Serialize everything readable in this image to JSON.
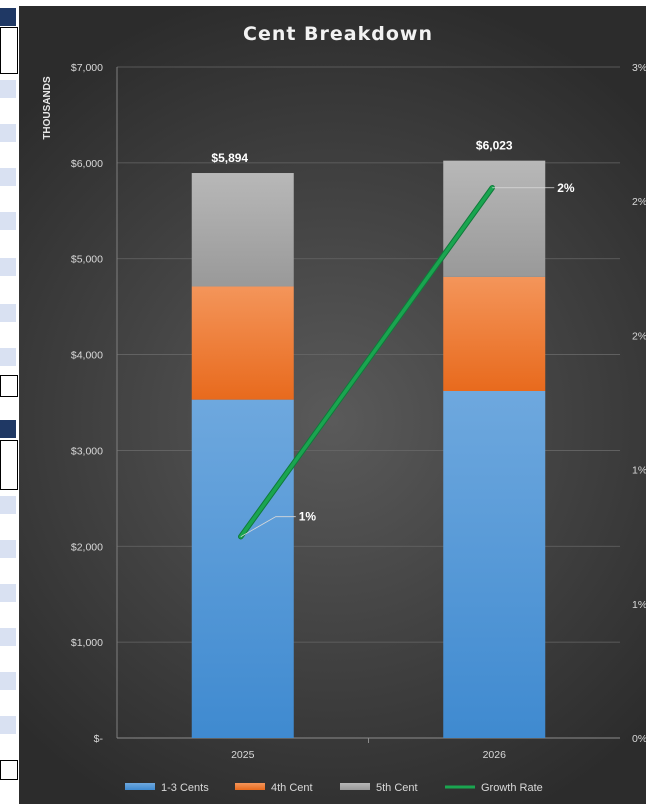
{
  "chart_data": {
    "type": "bar",
    "stacked": true,
    "title": "Cent Breakdown",
    "ylabel": "THOUSANDS",
    "xlabel": "",
    "categories": [
      "2025",
      "2026"
    ],
    "ylim": [
      0,
      7000
    ],
    "y_ticks": [
      {
        "value": 0,
        "label": "$-"
      },
      {
        "value": 1000,
        "label": "$1,000"
      },
      {
        "value": 2000,
        "label": "$2,000"
      },
      {
        "value": 3000,
        "label": "$3,000"
      },
      {
        "value": 4000,
        "label": "$4,000"
      },
      {
        "value": 5000,
        "label": "$5,000"
      },
      {
        "value": 6000,
        "label": "$6,000"
      },
      {
        "value": 7000,
        "label": "$7,000"
      }
    ],
    "y2lim": [
      0,
      0.025
    ],
    "y2_ticks": [
      {
        "value": 0,
        "label": "0%"
      },
      {
        "value": 0.005,
        "label": "1%"
      },
      {
        "value": 0.01,
        "label": "1%"
      },
      {
        "value": 0.015,
        "label": "2%"
      },
      {
        "value": 0.02,
        "label": "2%"
      },
      {
        "value": 0.025,
        "label": "3%"
      }
    ],
    "series": [
      {
        "name": "1-3 Cents",
        "values": [
          3530,
          3620
        ],
        "color": "#5b9bd5"
      },
      {
        "name": "4th Cent",
        "values": [
          1180,
          1190
        ],
        "color": "#ed7d31"
      },
      {
        "name": "5th Cent",
        "values": [
          1184,
          1213
        ],
        "color": "#a5a5a5"
      }
    ],
    "totals": {
      "values": [
        5894,
        6023
      ],
      "labels": [
        "$5,894",
        "$6,023"
      ]
    },
    "line_series": {
      "name": "Growth Rate",
      "axis": "secondary",
      "values": [
        0.0075,
        0.0205
      ],
      "labels": [
        "1%",
        "2%"
      ],
      "color": "#1aa550"
    },
    "legend_position": "bottom",
    "grid": true
  }
}
